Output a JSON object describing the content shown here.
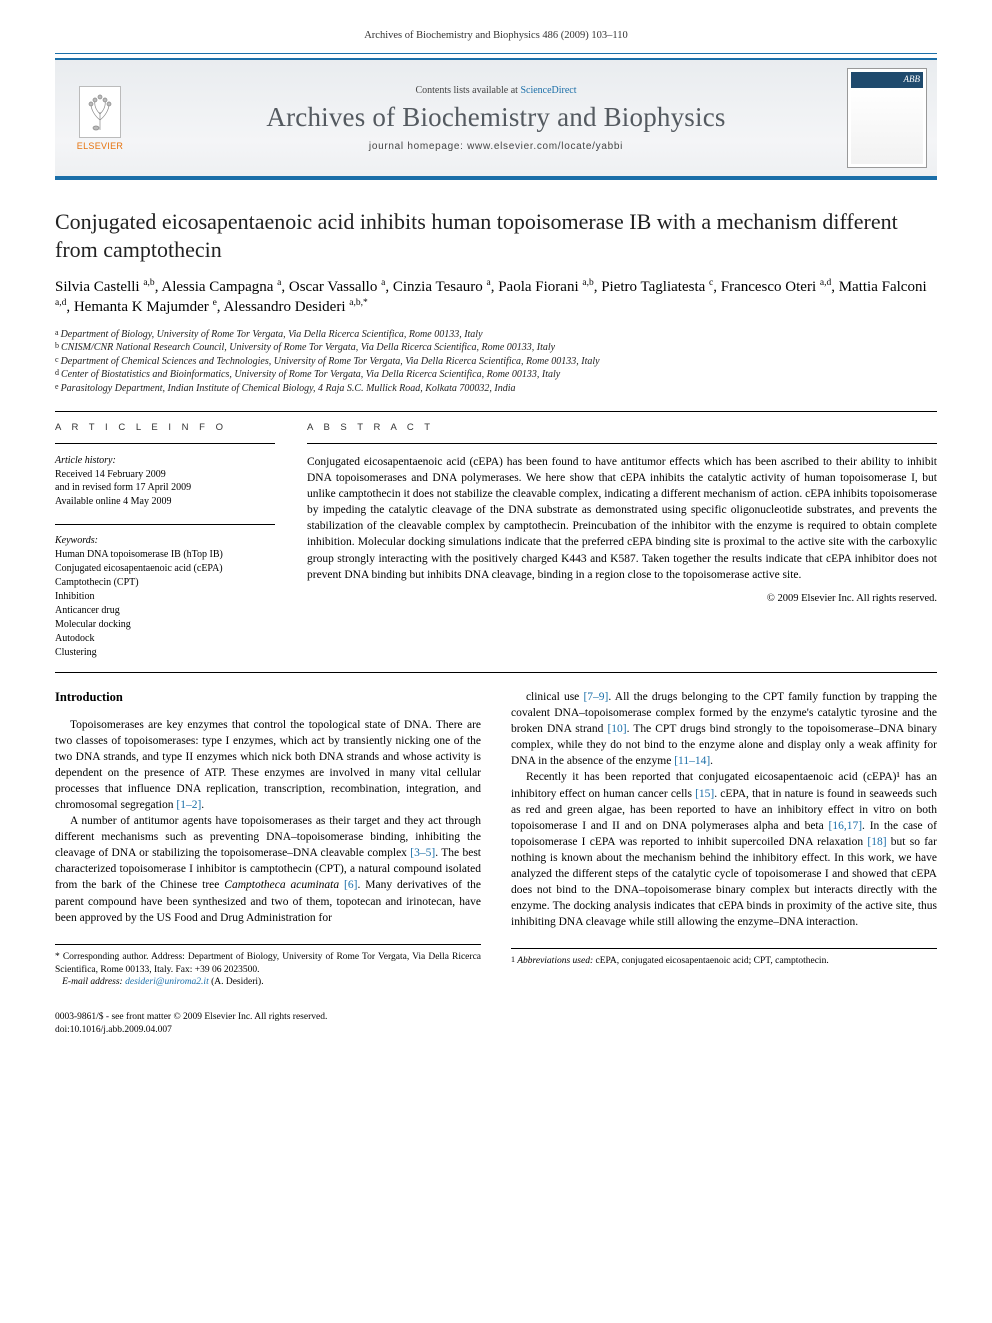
{
  "running_head": "Archives of Biochemistry and Biophysics 486 (2009) 103–110",
  "header": {
    "contents_line_pre": "Contents lists available at ",
    "contents_link": "ScienceDirect",
    "journal_title": "Archives of Biochemistry and Biophysics",
    "homepage_pre": "journal homepage: ",
    "homepage_url": "www.elsevier.com/locate/yabbi",
    "publisher": "ELSEVIER",
    "cover_abbrev": "ABB"
  },
  "title": "Conjugated eicosapentaenoic acid inhibits human topoisomerase IB with a mechanism different from camptothecin",
  "authors_html": "Silvia Castelli <sup>a,b</sup>, Alessia Campagna <sup>a</sup>, Oscar Vassallo <sup>a</sup>, Cinzia Tesauro <sup>a</sup>, Paola Fiorani <sup>a,b</sup>, Pietro Tagliatesta <sup>c</sup>, Francesco Oteri <sup>a,d</sup>, Mattia Falconi <sup>a,d</sup>, Hemanta K Majumder <sup>e</sup>, Alessandro Desideri <sup>a,b,*</sup>",
  "affiliations": [
    {
      "sup": "a",
      "text": "Department of Biology, University of Rome Tor Vergata, Via Della Ricerca Scientifica, Rome 00133, Italy"
    },
    {
      "sup": "b",
      "text": "CNISM/CNR National Research Council, University of Rome Tor Vergata, Via Della Ricerca Scientifica, Rome 00133, Italy"
    },
    {
      "sup": "c",
      "text": "Department of Chemical Sciences and Technologies, University of Rome Tor Vergata, Via Della Ricerca Scientifica, Rome 00133, Italy"
    },
    {
      "sup": "d",
      "text": "Center of Biostatistics and Bioinformatics, University of Rome Tor Vergata, Via Della Ricerca Scientifica, Rome 00133, Italy"
    },
    {
      "sup": "e",
      "text": "Parasitology Department, Indian Institute of Chemical Biology, 4 Raja S.C. Mullick Road, Kolkata 700032, India"
    }
  ],
  "info": {
    "article_info_label": "A R T I C L E   I N F O",
    "abstract_label": "A B S T R A C T",
    "history_label": "Article history:",
    "history": [
      "Received 14 February 2009",
      "and in revised form 17 April 2009",
      "Available online 4 May 2009"
    ],
    "keywords_label": "Keywords:",
    "keywords": [
      "Human DNA topoisomerase IB (hTop IB)",
      "Conjugated eicosapentaenoic acid (cEPA)",
      "Camptothecin (CPT)",
      "Inhibition",
      "Anticancer drug",
      "Molecular docking",
      "Autodock",
      "Clustering"
    ]
  },
  "abstract": "Conjugated eicosapentaenoic acid (cEPA) has been found to have antitumor effects which has been ascribed to their ability to inhibit DNA topoisomerases and DNA polymerases. We here show that cEPA inhibits the catalytic activity of human topoisomerase I, but unlike camptothecin it does not stabilize the cleavable complex, indicating a different mechanism of action. cEPA inhibits topoisomerase by impeding the catalytic cleavage of the DNA substrate as demonstrated using specific oligonucleotide substrates, and prevents the stabilization of the cleavable complex by camptothecin. Preincubation of the inhibitor with the enzyme is required to obtain complete inhibition. Molecular docking simulations indicate that the preferred cEPA binding site is proximal to the active site with the carboxylic group strongly interacting with the positively charged K443 and K587. Taken together the results indicate that cEPA inhibitor does not prevent DNA binding but inhibits DNA cleavage, binding in a region close to the topoisomerase active site.",
  "abs_copyright": "© 2009 Elsevier Inc. All rights reserved.",
  "intro_heading": "Introduction",
  "col1": [
    "Topoisomerases are key enzymes that control the topological state of DNA. There are two classes of topoisomerases: type I enzymes, which act by transiently nicking one of the two DNA strands, and type II enzymes which nick both DNA strands and whose activity is dependent on the presence of ATP. These enzymes are involved in many vital cellular processes that influence DNA replication, transcription, recombination, integration, and chromosomal segregation [1–2].",
    "A number of antitumor agents have topoisomerases as their target and they act through different mechanisms such as preventing DNA–topoisomerase binding, inhibiting the cleavage of DNA or stabilizing the topoisomerase–DNA cleavable complex [3–5]. The best characterized topoisomerase I inhibitor is camptothecin (CPT), a natural compound isolated from the bark of the Chinese tree Camptotheca acuminata [6]. Many derivatives of the parent compound have been synthesized and two of them, topotecan and irinotecan, have been approved by the US Food and Drug Administration for"
  ],
  "col2": [
    "clinical use [7–9]. All the drugs belonging to the CPT family function by trapping the covalent DNA–topoisomerase complex formed by the enzyme's catalytic tyrosine and the broken DNA strand [10]. The CPT drugs bind strongly to the topoisomerase–DNA binary complex, while they do not bind to the enzyme alone and display only a weak affinity for DNA in the absence of the enzyme [11–14].",
    "Recently it has been reported that conjugated eicosapentaenoic acid (cEPA)¹ has an inhibitory effect on human cancer cells [15]. cEPA, that in nature is found in seaweeds such as red and green algae, has been reported to have an inhibitory effect in vitro on both topoisomerase I and II and on DNA polymerases alpha and beta [16,17]. In the case of topoisomerase I cEPA was reported to inhibit supercoiled DNA relaxation [18] but so far nothing is known about the mechanism behind the inhibitory effect. In this work, we have analyzed the different steps of the catalytic cycle of topoisomerase I and showed that cEPA does not bind to the DNA–topoisomerase binary complex but interacts directly with the enzyme. The docking analysis indicates that cEPA binds in proximity of the active site, thus inhibiting DNA cleavage while still allowing the enzyme–DNA interaction."
  ],
  "corresponding": {
    "star": "* ",
    "text": "Corresponding author. Address: Department of Biology, University of Rome Tor Vergata, Via Della Ricerca Scientifica, Rome 00133, Italy. Fax: +39 06 2023500.",
    "email_label": "E-mail address: ",
    "email": "desideri@uniroma2.it",
    "who": " (A. Desideri)."
  },
  "abbrev": {
    "sup": "1",
    "label": " Abbreviations used: ",
    "text": "cEPA, conjugated eicosapentaenoic acid; CPT, camptothecin."
  },
  "footer": {
    "line1": "0003-9861/$ - see front matter © 2009 Elsevier Inc. All rights reserved.",
    "line2": "doi:10.1016/j.abb.2009.04.007"
  },
  "colors": {
    "link": "#1a6ea8",
    "rule": "#1a6ea8",
    "publisher": "#e6730e",
    "journal_title": "#545a60"
  }
}
